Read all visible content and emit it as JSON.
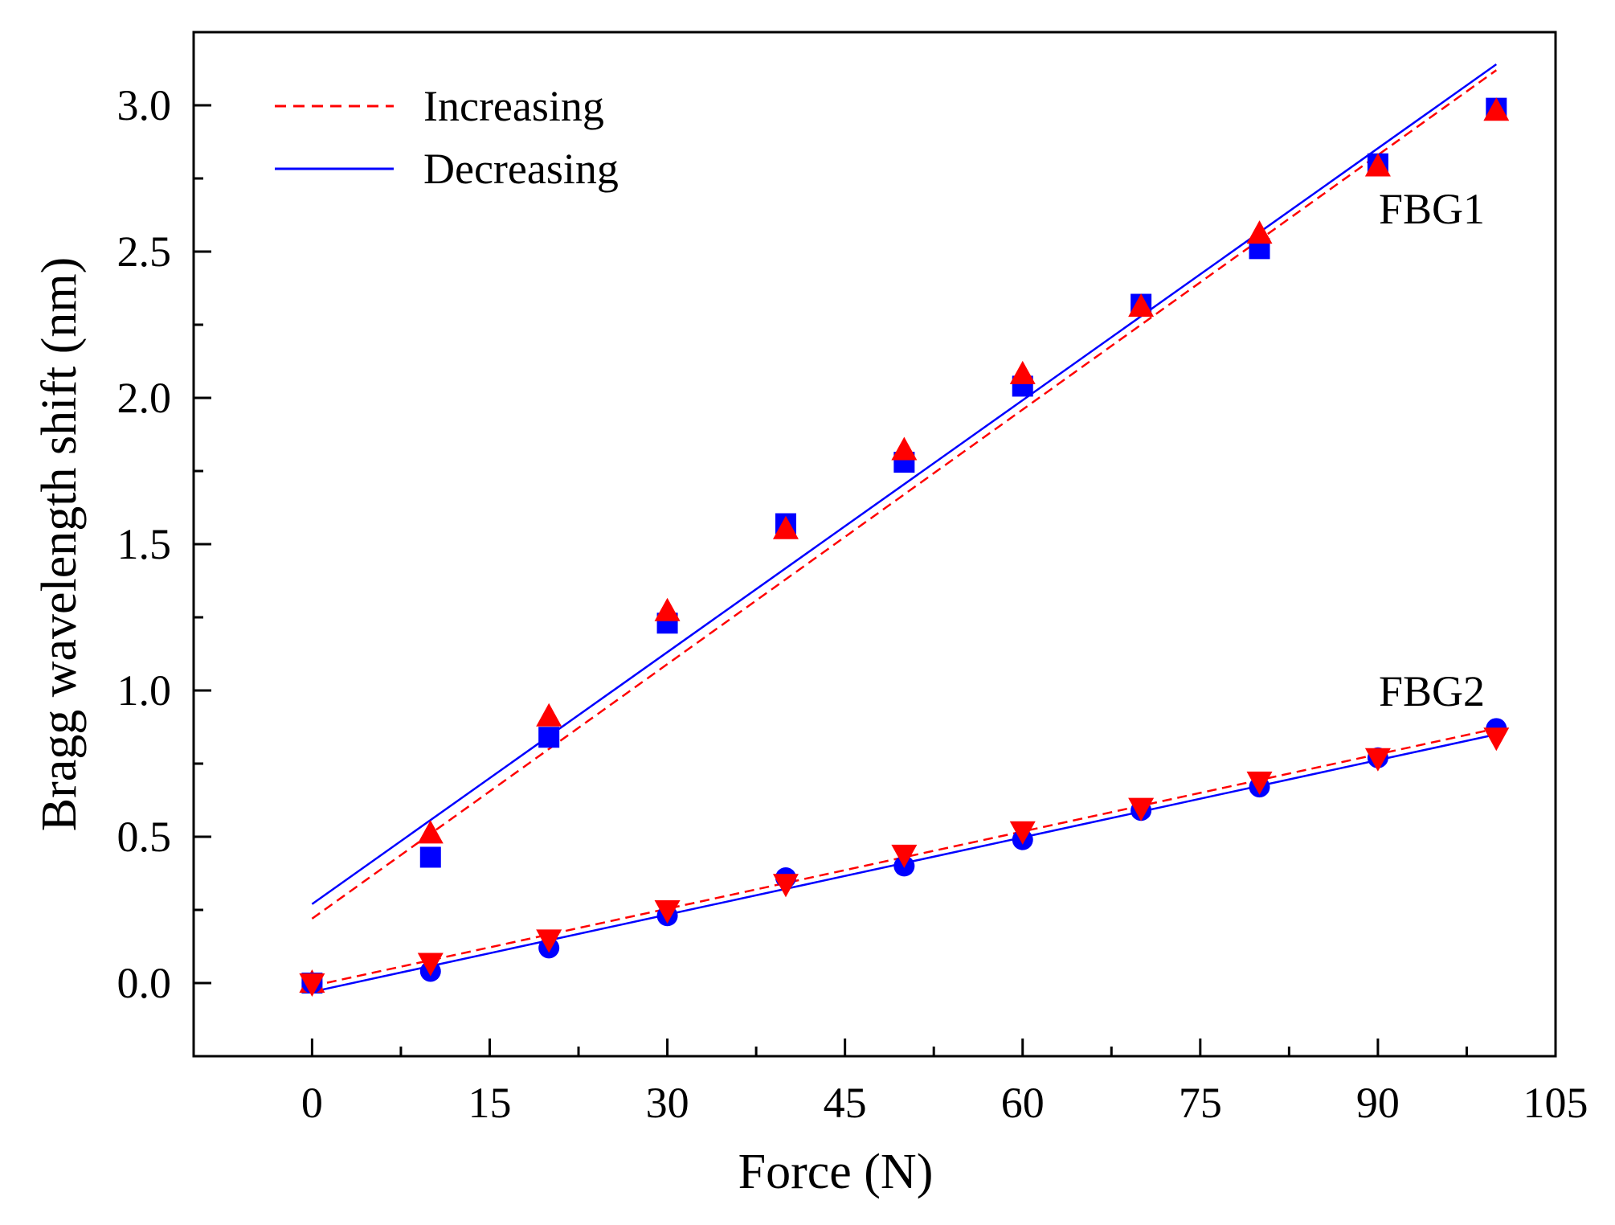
{
  "chart_data": {
    "type": "scatter",
    "title": "",
    "xlabel": "Force (N)",
    "ylabel": "Bragg wavelength shift (nm)",
    "xlim": [
      -10,
      105
    ],
    "ylim": [
      -0.25,
      3.25
    ],
    "xticks": [
      0,
      15,
      30,
      45,
      60,
      75,
      90,
      105
    ],
    "yticks": [
      0.0,
      0.5,
      1.0,
      1.5,
      2.0,
      2.5,
      3.0
    ],
    "xtick_labels": [
      "0",
      "15",
      "30",
      "45",
      "60",
      "75",
      "90",
      "105"
    ],
    "ytick_labels": [
      "0.0",
      "0.5",
      "1.0",
      "1.5",
      "2.0",
      "2.5",
      "3.0"
    ],
    "grid": false,
    "legend": {
      "position": "top-left",
      "entries": [
        {
          "label": "Increasing",
          "style": "dashed",
          "color": "#ff0000"
        },
        {
          "label": "Decreasing",
          "style": "solid",
          "color": "#0000ff"
        }
      ]
    },
    "annotations": [
      {
        "text": "FBG1"
      },
      {
        "text": "FBG2"
      }
    ],
    "x": [
      0,
      10,
      20,
      30,
      40,
      50,
      60,
      70,
      80,
      90,
      100
    ],
    "series": [
      {
        "name": "FBG1 decreasing",
        "marker": "square",
        "color": "#0000ff",
        "values": [
          0.0,
          0.43,
          0.84,
          1.23,
          1.57,
          1.78,
          2.04,
          2.32,
          2.51,
          2.8,
          2.99
        ]
      },
      {
        "name": "FBG1 increasing",
        "marker": "triangle-up",
        "color": "#ff0000",
        "values": [
          0.0,
          0.51,
          0.91,
          1.27,
          1.55,
          1.82,
          2.08,
          2.31,
          2.56,
          2.79,
          2.98
        ]
      },
      {
        "name": "FBG2 decreasing",
        "marker": "circle",
        "color": "#0000ff",
        "values": [
          0.0,
          0.04,
          0.12,
          0.23,
          0.36,
          0.4,
          0.49,
          0.59,
          0.67,
          0.77,
          0.87
        ]
      },
      {
        "name": "FBG2 increasing",
        "marker": "triangle-down",
        "color": "#ff0000",
        "values": [
          0.0,
          0.07,
          0.15,
          0.25,
          0.34,
          0.44,
          0.52,
          0.6,
          0.69,
          0.77,
          0.84
        ]
      }
    ],
    "fit_lines": [
      {
        "name": "FBG1 increasing fit",
        "style": "dashed",
        "color": "#ff0000",
        "x": [
          0,
          100
        ],
        "y": [
          0.22,
          3.12
        ]
      },
      {
        "name": "FBG1 decreasing fit",
        "style": "solid",
        "color": "#0000ff",
        "x": [
          0,
          100
        ],
        "y": [
          0.27,
          3.14
        ]
      },
      {
        "name": "FBG2 increasing fit",
        "style": "dashed",
        "color": "#ff0000",
        "x": [
          0,
          100
        ],
        "y": [
          -0.01,
          0.87
        ]
      },
      {
        "name": "FBG2 decreasing fit",
        "style": "solid",
        "color": "#0000ff",
        "x": [
          0,
          100
        ],
        "y": [
          -0.03,
          0.85
        ]
      }
    ]
  }
}
